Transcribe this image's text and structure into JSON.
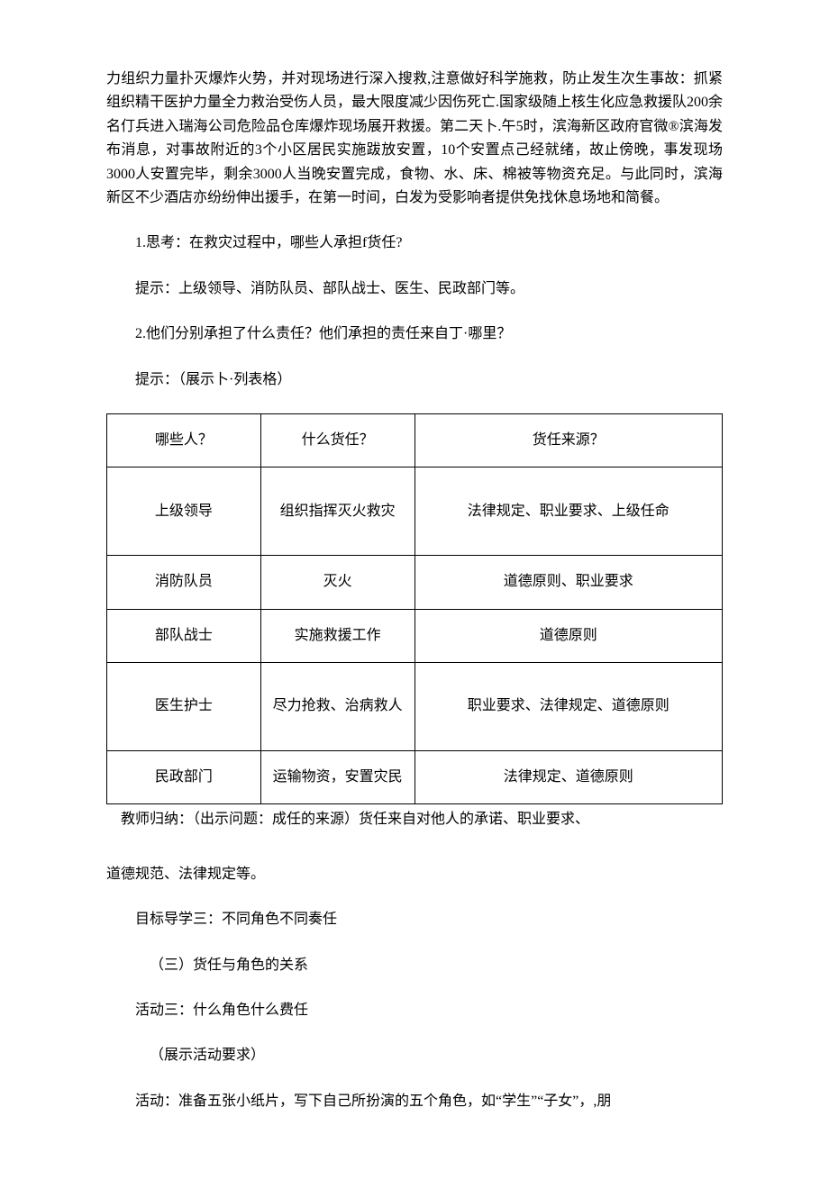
{
  "p1": "力组织力量扑灭爆炸火势，并对现场进行深入搜救,注意做好科学施救，防止发生次生事故：抓紧组织精干医护力量全力救治受伤人员，最大限度减少因伤死亡.国家级随上核生化应急救援队200余名仃兵进入瑞海公司危险品仓库爆炸现场展开救援。第二天卜.午5时，滨海新区政府官微®滨海发布消息，对事故附近的3个小区居民实施跋放安置，10个安置点己经就绪，故止傍晚，事发现场3000人安置完毕，剩余3000人当晚安置完成，食物、水、床、棉被等物资充足。与此同时，滨海新区不少酒店亦纷纷伸出援手，在第一时间，白发为受影响者提供免找休息场地和简餐。",
  "q1": "1.思考：在救灾过程中，哪些人承担f货任?",
  "hint1": "提示：上级领导、消防队员、部队战士、医生、民政部门等。",
  "q2": "2.他们分别承担了什么责任？他们承担的责任来自丁·哪里？",
  "hint2": "提示：（展示卜·列表格）",
  "table": {
    "headers": [
      "哪些人？",
      "什么货任？",
      "货任来源？"
    ],
    "rows": [
      [
        "上级领导",
        "组织指挥灭火救灾",
        "法律规定、职业要求、上级任命"
      ],
      [
        "消防队员",
        "灭火",
        "道德原则、职业要求"
      ],
      [
        "部队战士",
        "实施救援工作",
        "道德原则"
      ],
      [
        "医生护士",
        "尽力抢救、治病救人",
        "职业要求、法律规定、道德原则"
      ],
      [
        "民政部门",
        "运输物资，安置灾民",
        "法律规定、道德原则"
      ]
    ]
  },
  "summary1": "教师归纳：（出示问题：成任的来源）货任来自对他人的承诺、职业要求、",
  "summary2": "道德规范、法律规定等。",
  "section_title": "目标导学三：不同角色不同奏任",
  "subsection": "（三）货任与角色的关系",
  "activity_title": "活动三：什么角色什么费任",
  "activity_req": "（展示活动要求）",
  "activity_desc": "活动：准备五张小纸片，写下自己所扮演的五个角色，如“学生”“子女”，,朋"
}
